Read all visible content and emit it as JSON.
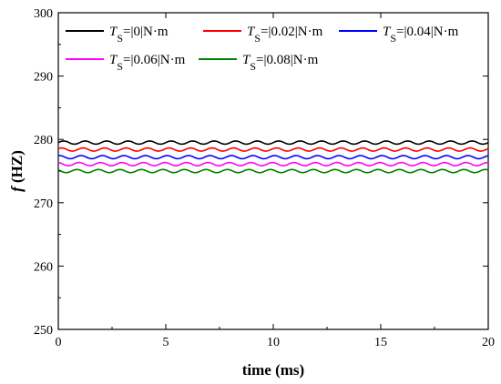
{
  "chart_data": {
    "type": "line",
    "xlabel": "time (ms)",
    "ylabel_italic": "f",
    "ylabel_rest": " (HZ)",
    "xlim": [
      0,
      20
    ],
    "ylim": [
      250,
      300
    ],
    "xticks": [
      0,
      5,
      10,
      15,
      20
    ],
    "yticks": [
      250,
      260,
      270,
      280,
      290,
      300
    ],
    "grid": false,
    "legend_position": "top",
    "series": [
      {
        "name": "T_S=|0|N·m",
        "symbol": "T",
        "subscript": "S",
        "label_rest": "=|0|N·m",
        "color": "#000000",
        "mean": 279.5,
        "amplitude": 0.25,
        "period_ms": 1.0
      },
      {
        "name": "T_S=|0.02|N·m",
        "symbol": "T",
        "subscript": "S",
        "label_rest": "=|0.02|N·m",
        "color": "#ff0000",
        "mean": 278.4,
        "amplitude": 0.25,
        "period_ms": 1.0
      },
      {
        "name": "T_S=|0.04|N·m",
        "symbol": "T",
        "subscript": "S",
        "label_rest": "=|0.04|N·m",
        "color": "#0000ff",
        "mean": 277.2,
        "amplitude": 0.25,
        "period_ms": 1.0
      },
      {
        "name": "T_S=|0.06|N·m",
        "symbol": "T",
        "subscript": "S",
        "label_rest": "=|0.06|N·m",
        "color": "#ff00ff",
        "mean": 276.1,
        "amplitude": 0.25,
        "period_ms": 1.0
      },
      {
        "name": "T_S=|0.08|N·m",
        "symbol": "T",
        "subscript": "S",
        "label_rest": "=|0.08|N·m",
        "color": "#008000",
        "mean": 275.0,
        "amplitude": 0.25,
        "period_ms": 1.0
      }
    ]
  }
}
